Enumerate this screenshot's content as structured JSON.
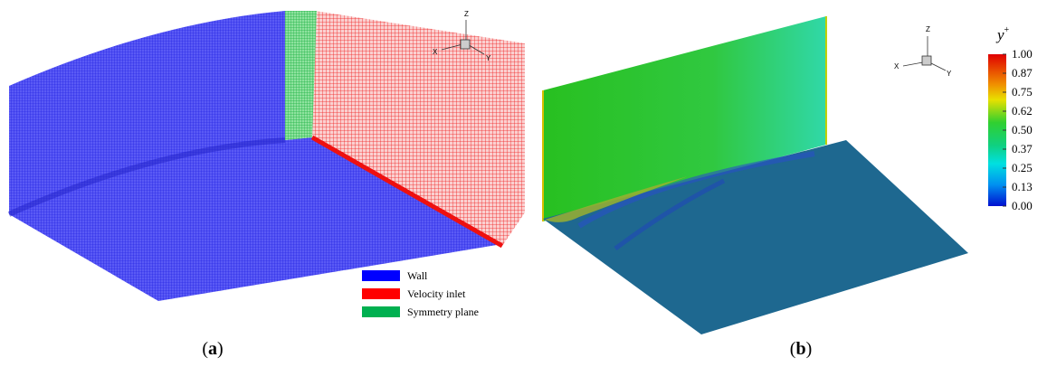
{
  "panel_a": {
    "triad": {
      "z": "Z",
      "x": "X",
      "y": "Y"
    },
    "legend": [
      "Wall",
      "Velocity inlet",
      "Symmetry plane"
    ],
    "caption": {
      "open": "(",
      "label": "a",
      "close": ")"
    }
  },
  "panel_b": {
    "triad": {
      "z": "Z",
      "x": "X",
      "y": "Y"
    },
    "colorbar": {
      "title": "y",
      "title_sup": "+",
      "ticks": [
        "1.00",
        "0.87",
        "0.75",
        "0.62",
        "0.50",
        "0.37",
        "0.25",
        "0.13",
        "0.00"
      ]
    },
    "caption": {
      "open": "(",
      "label": "b",
      "close": ")"
    }
  }
}
